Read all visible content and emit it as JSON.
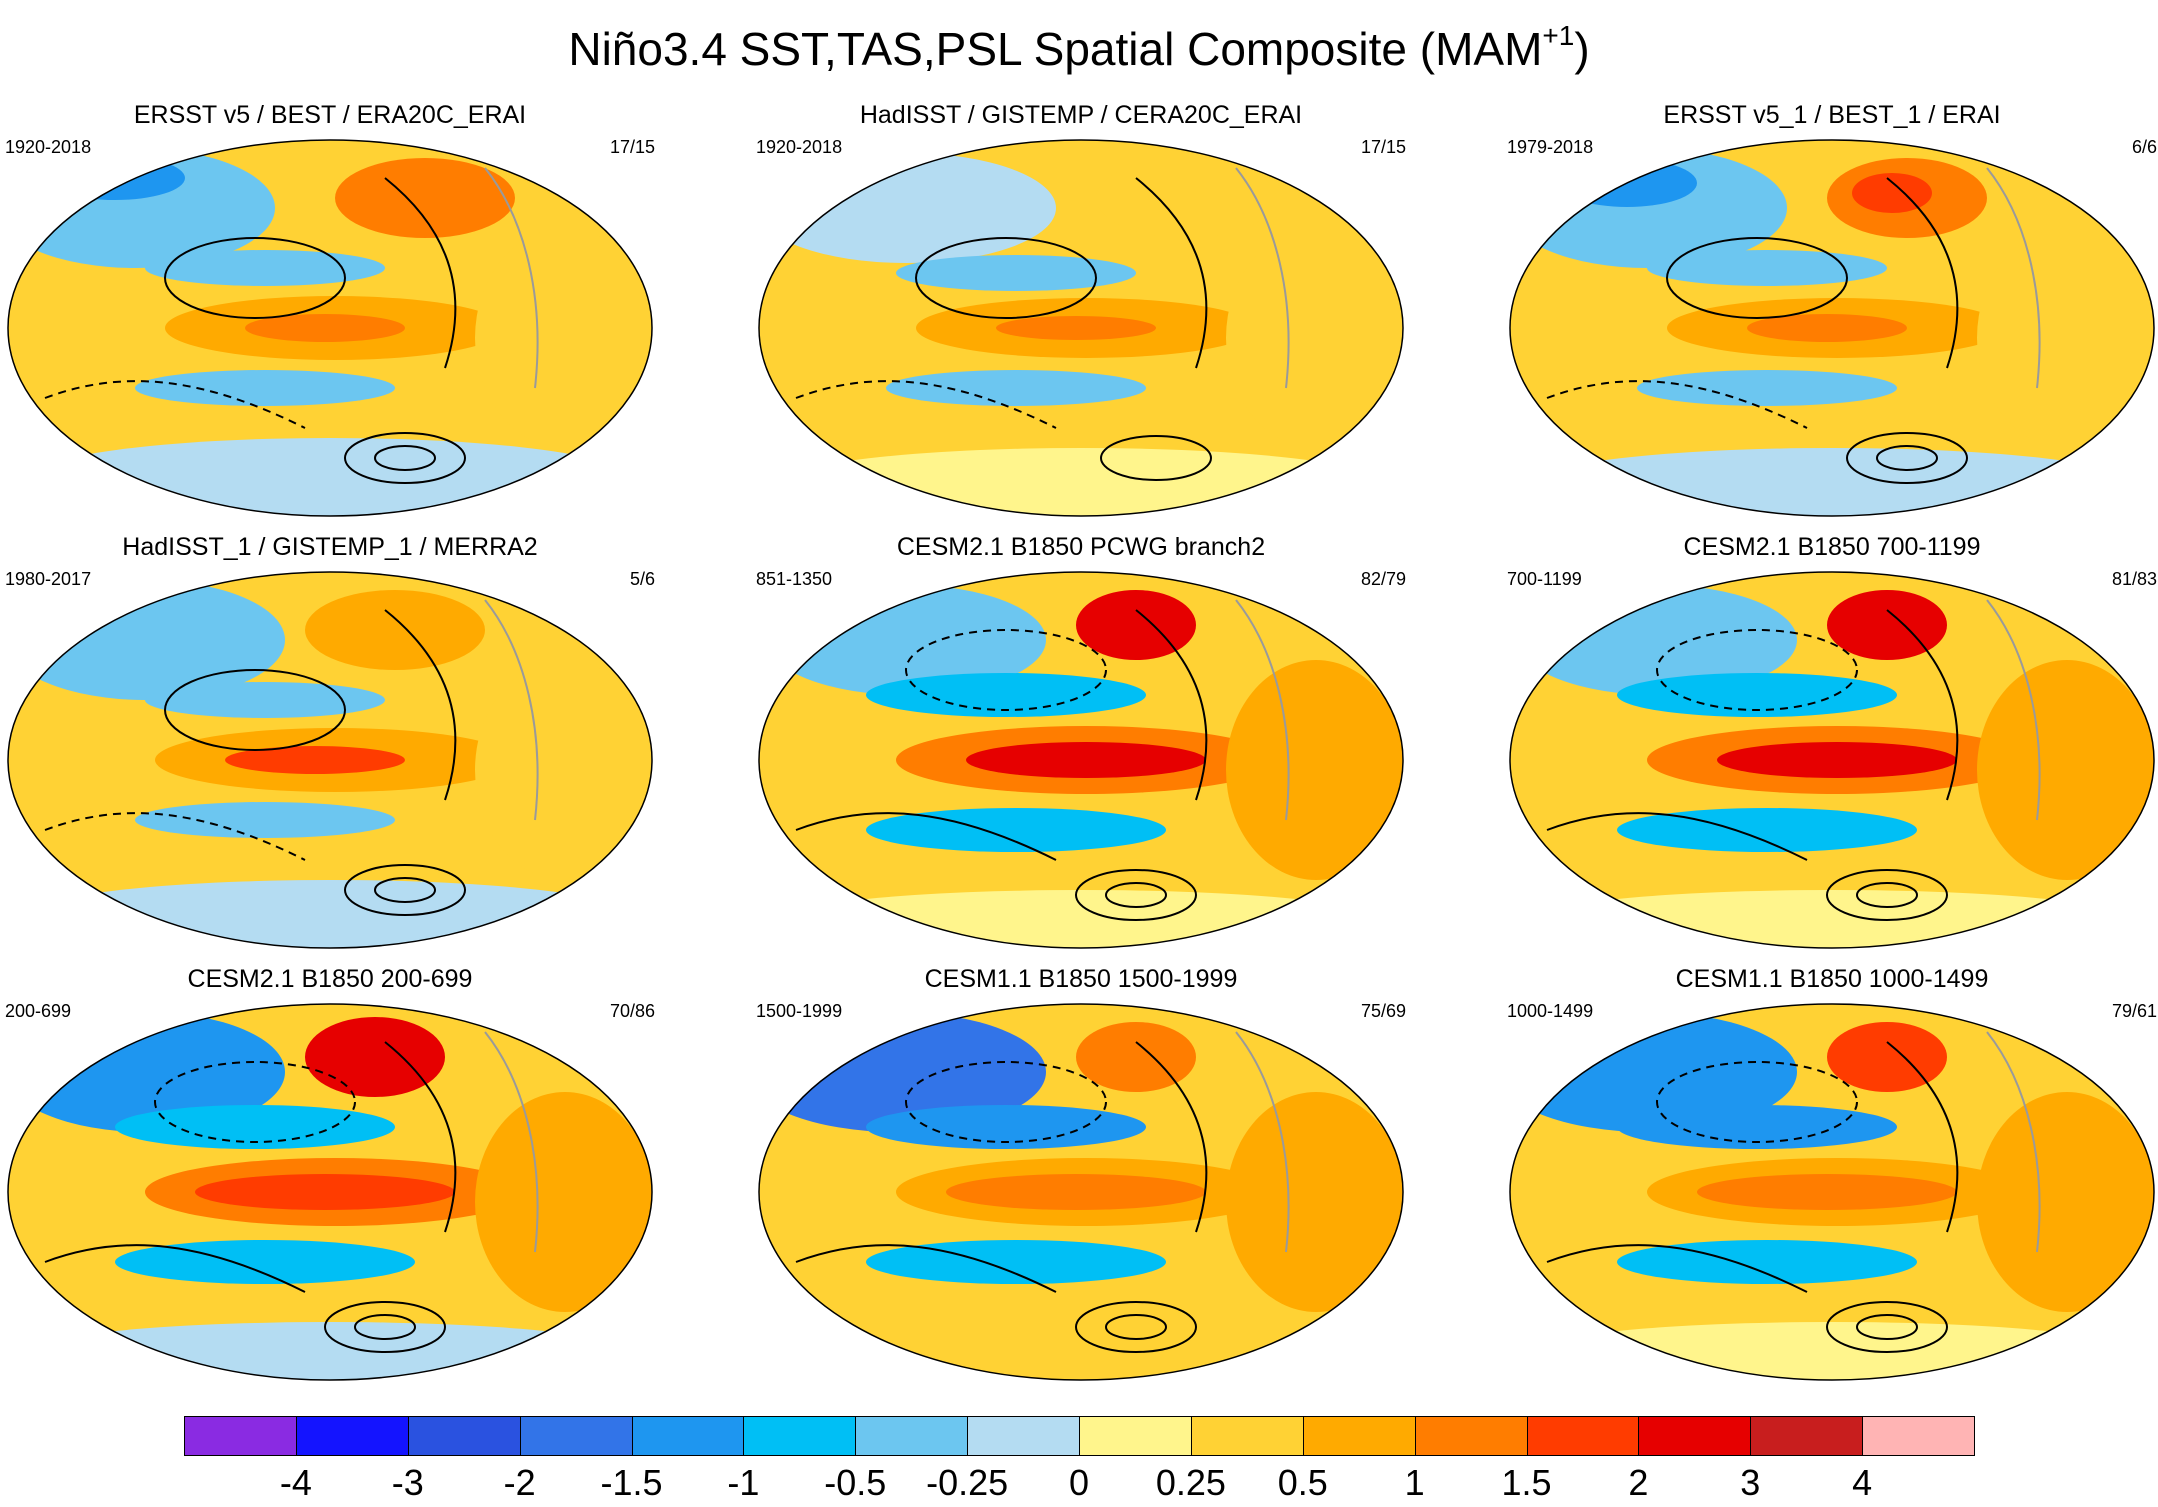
{
  "figure": {
    "title_main": "Niño3.4 SST,TAS,PSL Spatial Composite (MAM",
    "title_sup": "+1",
    "title_close": ")"
  },
  "panels": [
    {
      "title": "ERSST v5 / BEST / ERA20C_ERAI",
      "period": "1920-2018",
      "count": "17/15"
    },
    {
      "title": "HadISST / GISTEMP / CERA20C_ERAI",
      "period": "1920-2018",
      "count": "17/15"
    },
    {
      "title": "ERSST v5_1 / BEST_1 / ERAI",
      "period": "1979-2018",
      "count": "6/6"
    },
    {
      "title": "HadISST_1 / GISTEMP_1 / MERRA2",
      "period": "1980-2017",
      "count": "5/6"
    },
    {
      "title": "CESM2.1 B1850 PCWG branch2",
      "period": "851-1350",
      "count": "82/79"
    },
    {
      "title": "CESM2.1 B1850 700-1199",
      "period": "700-1199",
      "count": "81/83"
    },
    {
      "title": "CESM2.1 B1850 200-699",
      "period": "200-699",
      "count": "70/86"
    },
    {
      "title": "CESM1.1 B1850 1500-1999",
      "period": "1500-1999",
      "count": "75/69"
    },
    {
      "title": "CESM1.1 B1850 1000-1499",
      "period": "1000-1499",
      "count": "79/61"
    }
  ],
  "colorbar": {
    "labels": [
      "-4",
      "-3",
      "-2",
      "-1.5",
      "-1",
      "-0.5",
      "-0.25",
      "0",
      "0.25",
      "0.5",
      "1",
      "1.5",
      "2",
      "3",
      "4"
    ],
    "colors": [
      "#8a2be2",
      "#1414ff",
      "#2a52e0",
      "#3274e8",
      "#1e96f0",
      "#00bff5",
      "#6cc6f0",
      "#b4dcf2",
      "#fff58c",
      "#ffd234",
      "#ffaa00",
      "#ff7d00",
      "#ff3c00",
      "#e60000",
      "#c81e1e",
      "#ffb4b4"
    ]
  }
}
